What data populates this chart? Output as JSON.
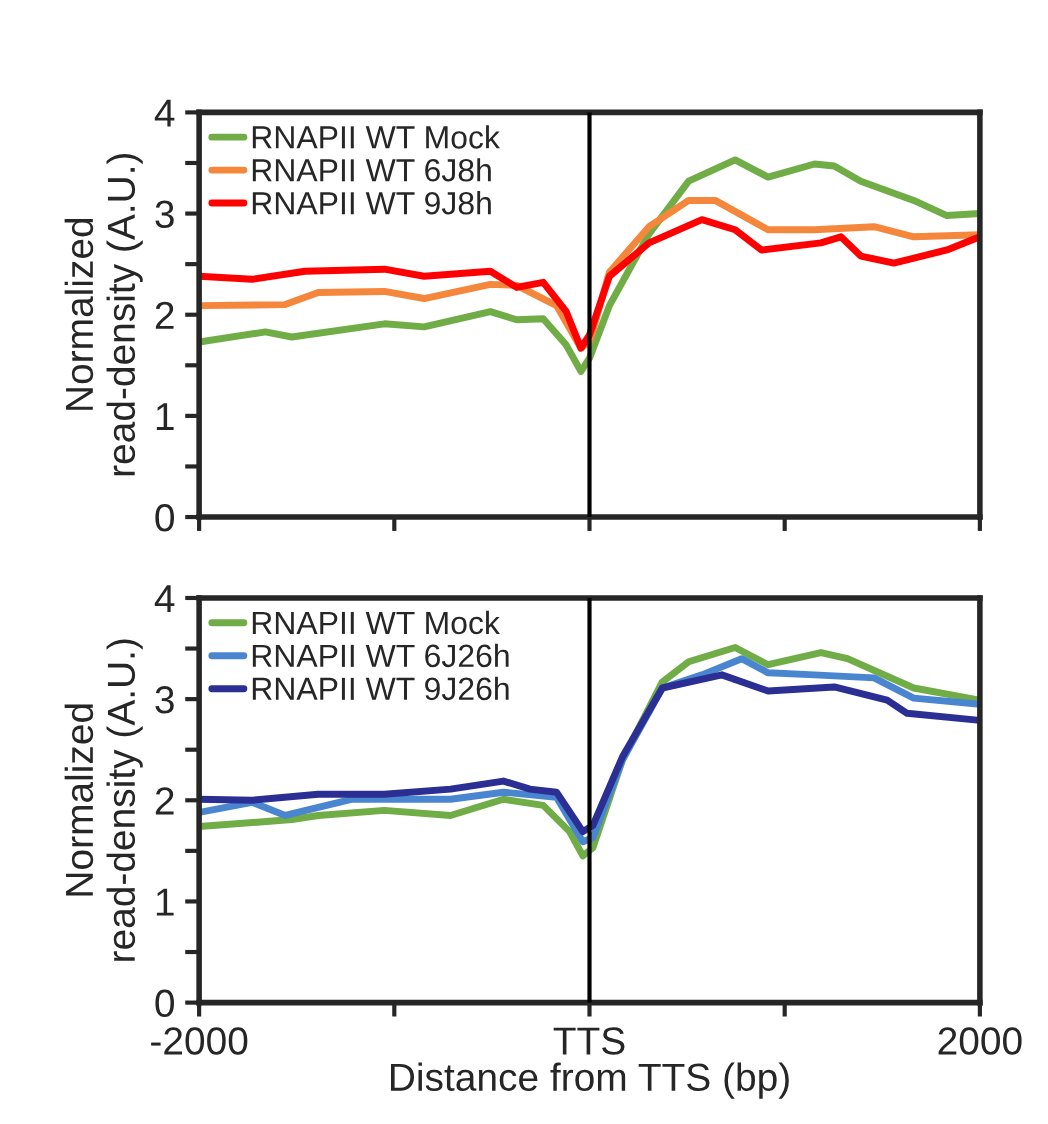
{
  "chart_data": [
    {
      "type": "line",
      "ylabel": "Normalized\nread-density (A.U.)",
      "xlim": [
        -2000,
        2000
      ],
      "ylim": [
        0,
        4
      ],
      "xticks": [
        {
          "value": -2000,
          "label": null
        },
        {
          "value": -1000,
          "label": null
        },
        {
          "value": 0,
          "label": null
        },
        {
          "value": 1000,
          "label": null
        },
        {
          "value": 2000,
          "label": null
        }
      ],
      "yticks": [
        0,
        {
          "value": 0.5,
          "label": null
        },
        1,
        {
          "value": 1.5,
          "label": null
        },
        2,
        {
          "value": 2.5,
          "label": null
        },
        3,
        {
          "value": 3.5,
          "label": null
        },
        4
      ],
      "tick_labels": "y",
      "grid": false,
      "legend": "top left",
      "marker": "none",
      "line_style": "solid",
      "ref_lines": [
        {
          "axis": "x",
          "value": 0,
          "color": "#000000"
        }
      ],
      "series": [
        {
          "name": "RNAPII WT Mock",
          "color": "#70ad47",
          "x": [
            -2000,
            -1661,
            -1525,
            -1051,
            -847,
            -508,
            -373,
            -237,
            -119,
            -44,
            0,
            102,
            305,
            508,
            746,
            915,
            1153,
            1254,
            1390,
            1661,
            1831,
            2000
          ],
          "values": [
            1.73,
            1.83,
            1.78,
            1.91,
            1.88,
            2.03,
            1.95,
            1.96,
            1.7,
            1.44,
            1.57,
            2.09,
            2.8,
            3.32,
            3.53,
            3.36,
            3.49,
            3.47,
            3.32,
            3.13,
            2.98,
            3.0
          ]
        },
        {
          "name": "RNAPII WT 6J8h",
          "color": "#f4873c",
          "x": [
            -2000,
            -1559,
            -1390,
            -1051,
            -847,
            -508,
            -373,
            -169,
            -44,
            0,
            102,
            305,
            508,
            644,
            915,
            1153,
            1458,
            1661,
            2000
          ],
          "values": [
            2.09,
            2.1,
            2.22,
            2.23,
            2.16,
            2.3,
            2.29,
            2.09,
            1.67,
            1.73,
            2.42,
            2.87,
            3.13,
            3.13,
            2.84,
            2.84,
            2.87,
            2.77,
            2.79
          ]
        },
        {
          "name": "RNAPII WT 9J8h",
          "color": "#ff0000",
          "x": [
            -2000,
            -1729,
            -1458,
            -1051,
            -847,
            -508,
            -373,
            -237,
            -119,
            -44,
            0,
            102,
            305,
            576,
            746,
            881,
            1186,
            1288,
            1390,
            1559,
            1831,
            2000
          ],
          "values": [
            2.38,
            2.35,
            2.43,
            2.45,
            2.38,
            2.43,
            2.27,
            2.32,
            2.03,
            1.67,
            1.8,
            2.38,
            2.71,
            2.94,
            2.84,
            2.64,
            2.71,
            2.77,
            2.58,
            2.51,
            2.64,
            2.77
          ]
        }
      ]
    },
    {
      "type": "line",
      "ylabel": "Normalized\nread-density (A.U.)",
      "xlabel": "Distance from TTS (bp)",
      "xlim": [
        -2000,
        2000
      ],
      "ylim": [
        0,
        4
      ],
      "xticks": [
        -2000,
        {
          "value": -1000,
          "label": null
        },
        {
          "value": 0,
          "label": "TTS"
        },
        {
          "value": 1000,
          "label": null
        },
        2000
      ],
      "yticks": [
        0,
        {
          "value": 0.5,
          "label": null
        },
        1,
        {
          "value": 1.5,
          "label": null
        },
        2,
        {
          "value": 2.5,
          "label": null
        },
        3,
        {
          "value": 3.5,
          "label": null
        },
        4
      ],
      "grid": false,
      "legend": "top left",
      "marker": "none",
      "line_style": "solid",
      "ref_lines": [
        {
          "axis": "x",
          "value": 0,
          "color": "#000000"
        }
      ],
      "series": [
        {
          "name": "RNAPII WT Mock",
          "color": "#70ad47",
          "x": [
            -2000,
            -1525,
            -1390,
            -1051,
            -712,
            -441,
            -237,
            -102,
            -34,
            17,
            169,
            373,
            508,
            746,
            915,
            1186,
            1322,
            1661,
            2000
          ],
          "values": [
            1.74,
            1.81,
            1.85,
            1.9,
            1.85,
            2.01,
            1.95,
            1.69,
            1.45,
            1.53,
            2.4,
            3.17,
            3.37,
            3.51,
            3.34,
            3.46,
            3.4,
            3.11,
            2.99
          ]
        },
        {
          "name": "RNAPII WT 6J26h",
          "color": "#4a86d0",
          "x": [
            -2000,
            -1729,
            -1559,
            -1220,
            -712,
            -441,
            -169,
            -34,
            17,
            169,
            373,
            576,
            780,
            915,
            1153,
            1458,
            1661,
            2000
          ],
          "values": [
            1.88,
            1.98,
            1.85,
            2.01,
            2.01,
            2.08,
            2.03,
            1.59,
            1.63,
            2.4,
            3.11,
            3.24,
            3.4,
            3.26,
            3.24,
            3.21,
            3.01,
            2.95
          ]
        },
        {
          "name": "RNAPII WT 9J26h",
          "color": "#2b2f94",
          "x": [
            -2000,
            -1729,
            -1390,
            -1051,
            -712,
            -441,
            -305,
            -169,
            -34,
            17,
            169,
            373,
            678,
            915,
            1254,
            1525,
            1627,
            2000
          ],
          "values": [
            2.01,
            2.0,
            2.06,
            2.06,
            2.11,
            2.19,
            2.11,
            2.08,
            1.69,
            1.75,
            2.43,
            3.11,
            3.24,
            3.08,
            3.12,
            2.99,
            2.86,
            2.79
          ]
        }
      ]
    }
  ]
}
